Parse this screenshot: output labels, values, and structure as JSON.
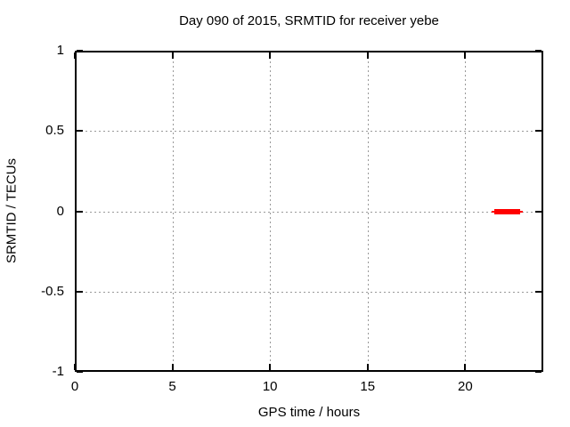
{
  "chart_data": {
    "type": "xerrorbar",
    "title": "Day 090 of 2015, SRMTID for receiver yebe",
    "xlabel": "GPS time / hours",
    "ylabel": "SRMTID / TECUs",
    "xlim": [
      0,
      24
    ],
    "ylim": [
      -1,
      1
    ],
    "xticks": [
      0,
      5,
      10,
      15,
      20
    ],
    "xtick_labels": [
      "0",
      "5",
      "10",
      "15",
      "20"
    ],
    "yticks": [
      1,
      0.5,
      0,
      -0.5,
      -1
    ],
    "ytick_labels": [
      "1",
      "0.5",
      "0",
      "-0.5",
      "-1"
    ],
    "grid": true,
    "legend": "none",
    "colors": {
      "background": "#ffffff",
      "border": "#000000",
      "grid": "#999999",
      "text": "#000000",
      "series": "#ff0000"
    },
    "series": [
      {
        "name": "SRMTID",
        "color": "#ff0000",
        "points": [
          {
            "y": 0,
            "box_x_start": 21.5,
            "box_x_end": 22.8,
            "whisker_x_start": 21.35,
            "whisker_x_end": 22.95
          }
        ]
      }
    ]
  }
}
